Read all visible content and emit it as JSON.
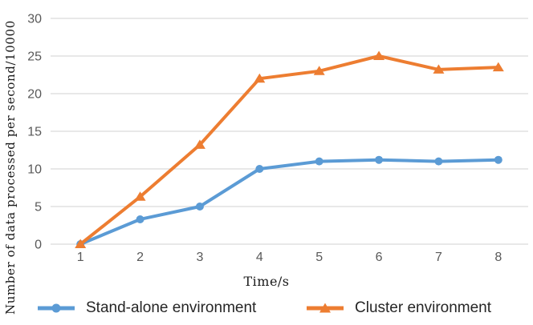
{
  "figure": {
    "background": "#ffffff"
  },
  "chart_data": {
    "type": "line",
    "title": "",
    "xlabel": "Time/s",
    "ylabel": "Number of data processed per second/10000",
    "x": [
      "1",
      "2",
      "3",
      "4",
      "5",
      "6",
      "7",
      "8"
    ],
    "ylim": [
      0,
      30
    ],
    "ytick_step": 5,
    "y_ticks": [
      "0",
      "5",
      "10",
      "15",
      "20",
      "25",
      "30"
    ],
    "grid": "horizontal",
    "legend_position": "bottom",
    "series": [
      {
        "name": "Stand-alone environment",
        "color": "#5b9bd5",
        "marker": "circle",
        "values": [
          0,
          3.3,
          5,
          10,
          11,
          11.2,
          11,
          11.2
        ]
      },
      {
        "name": "Cluster environment",
        "color": "#ed7d31",
        "marker": "triangle",
        "values": [
          0,
          6.3,
          13.2,
          22,
          23,
          25,
          23.2,
          23.5
        ]
      }
    ]
  },
  "style_colors": {
    "gridline": "#d9d9d9",
    "tick_label": "#595959",
    "axis_title": "#1a1a1a",
    "legend_text": "#262626"
  }
}
